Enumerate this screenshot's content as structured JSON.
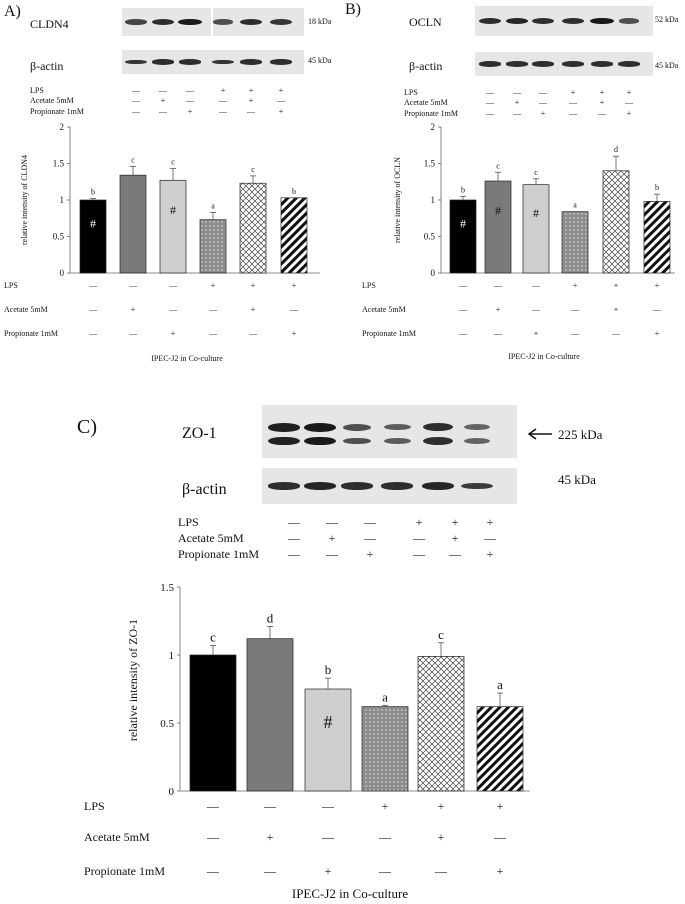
{
  "panels": [
    {
      "label": "A)",
      "protein": "CLDN4",
      "kda": "18 kDa",
      "actin_label": "β-actin",
      "actin_kda": "45 kDa",
      "band_levels": [
        0.7,
        0.85,
        1.0,
        0.6,
        0.85,
        0.8
      ],
      "actin_levels": [
        0.8,
        0.85,
        0.85,
        0.8,
        0.85,
        0.85
      ]
    },
    {
      "label": "B)",
      "protein": "OCLN",
      "kda": "52 kDa",
      "actin_label": "β-actin",
      "actin_kda": "45 kDa",
      "band_levels": [
        0.85,
        0.9,
        0.85,
        0.85,
        1.0,
        0.6
      ],
      "actin_levels": [
        0.85,
        0.85,
        0.85,
        0.85,
        0.85,
        0.85
      ]
    },
    {
      "label": "C)",
      "protein": "ZO-1",
      "kda": "225 kDa",
      "actin_label": "β-actin",
      "actin_kda": "45 kDa",
      "band_levels": [
        0.95,
        1.0,
        0.6,
        0.5,
        0.85,
        0.45
      ],
      "actin_levels": [
        0.85,
        0.9,
        0.85,
        0.85,
        0.9,
        0.75
      ]
    }
  ],
  "treatments": {
    "rows": [
      "LPS",
      "Acetate 5mM",
      "Propionate 1mM"
    ],
    "signs": [
      [
        "—",
        "—",
        "—",
        "+",
        "+",
        "+"
      ],
      [
        "—",
        "+",
        "—",
        "—",
        "+",
        "—"
      ],
      [
        "—",
        "—",
        "+",
        "—",
        "—",
        "+"
      ]
    ]
  },
  "hash_mark": "#",
  "chart_data": [
    {
      "type": "bar",
      "title": "",
      "ylabel": "relative intensity of CLDN4",
      "xlabel": "IPEC-J2 in Co-culture",
      "ylim": [
        0,
        2
      ],
      "yticks": [
        "0",
        "0.5",
        "1",
        "1.5",
        "2"
      ],
      "values": [
        1.0,
        1.34,
        1.27,
        0.73,
        1.23,
        1.03
      ],
      "errors": [
        0.02,
        0.12,
        0.16,
        0.1,
        0.1,
        0.0
      ],
      "letters": [
        "b",
        "c",
        "c",
        "a",
        "c",
        "b"
      ],
      "hash": [
        true,
        false,
        true,
        false,
        false,
        false
      ],
      "grid": false
    },
    {
      "type": "bar",
      "title": "",
      "ylabel": "relative intensity of OCLN",
      "xlabel": "IPEC-J2 in Co-culture",
      "ylim": [
        0,
        2
      ],
      "yticks": [
        "0",
        "0.5",
        "1",
        "1.5",
        "2"
      ],
      "values": [
        1.0,
        1.26,
        1.21,
        0.84,
        1.4,
        0.98
      ],
      "errors": [
        0.05,
        0.12,
        0.08,
        0.0,
        0.2,
        0.1
      ],
      "letters": [
        "b",
        "c",
        "c",
        "a",
        "d",
        "b"
      ],
      "hash": [
        true,
        true,
        true,
        false,
        false,
        false
      ],
      "grid": false
    },
    {
      "type": "bar",
      "title": "",
      "ylabel": "relative intensity of ZO-1",
      "xlabel": "IPEC-J2 in Co-culture",
      "ylim": [
        0,
        1.5
      ],
      "yticks": [
        "0",
        "0.5",
        "1",
        "1.5"
      ],
      "values": [
        1.0,
        1.12,
        0.75,
        0.62,
        0.99,
        0.62
      ],
      "errors": [
        0.07,
        0.09,
        0.08,
        0.01,
        0.1,
        0.1
      ],
      "letters": [
        "c",
        "d",
        "b",
        "a",
        "c",
        "a"
      ],
      "hash": [
        false,
        false,
        true,
        false,
        false,
        false
      ],
      "grid": false
    }
  ],
  "bar_styles": [
    "solid-black",
    "solid-darkgray",
    "solid-lightgray",
    "dotted-gray",
    "crosshatch",
    "diagonal-stripes"
  ]
}
